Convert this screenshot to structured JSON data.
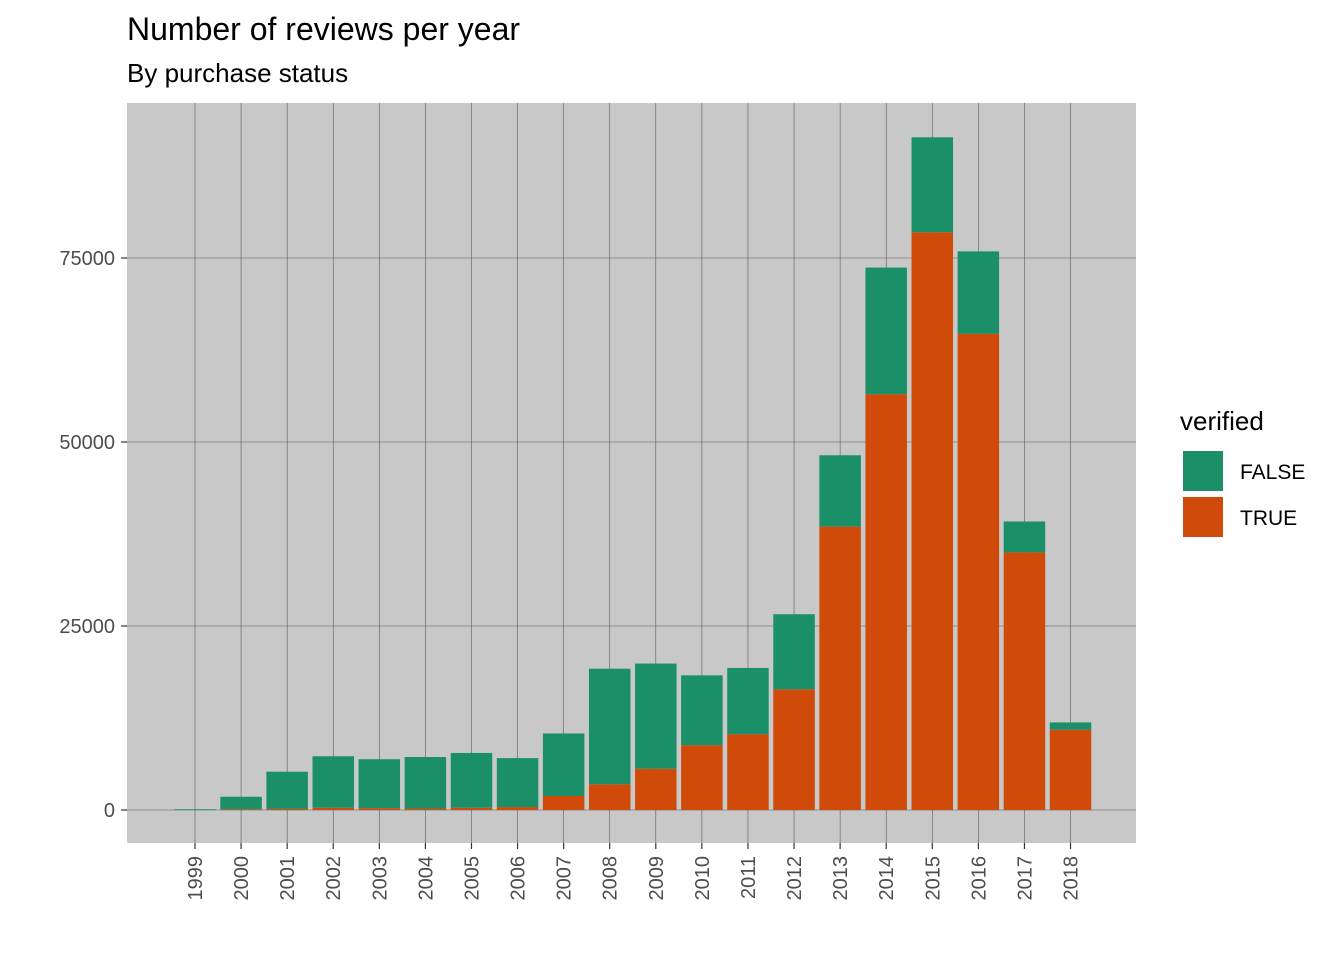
{
  "chart_data": {
    "type": "bar",
    "stacked": true,
    "title": "Number of reviews per year",
    "subtitle": "By purchase status",
    "xlabel": "",
    "ylabel": "",
    "categories": [
      "1999",
      "2000",
      "2001",
      "2002",
      "2003",
      "2004",
      "2005",
      "2006",
      "2007",
      "2008",
      "2009",
      "2010",
      "2011",
      "2012",
      "2013",
      "2014",
      "2015",
      "2016",
      "2017",
      "2018"
    ],
    "series": [
      {
        "name": "TRUE",
        "color": "#d04a09",
        "values": [
          0,
          100,
          150,
          300,
          250,
          200,
          300,
          400,
          1900,
          3500,
          5600,
          8800,
          10300,
          16400,
          38500,
          56500,
          78500,
          64700,
          35000,
          10900
        ]
      },
      {
        "name": "FALSE",
        "color": "#1b9068",
        "values": [
          100,
          1700,
          5050,
          7000,
          6650,
          7000,
          7450,
          6650,
          8500,
          15700,
          14300,
          9500,
          9000,
          10200,
          9700,
          17200,
          12900,
          11200,
          4200,
          1000
        ]
      }
    ],
    "y_ticks": [
      "0",
      "25000",
      "50000",
      "75000"
    ],
    "ylim": [
      -4500,
      96000
    ],
    "grid": true,
    "legend": {
      "title": "verified",
      "position": "right",
      "order": [
        "FALSE",
        "TRUE"
      ]
    },
    "panel_color": "#c8c8c8"
  }
}
